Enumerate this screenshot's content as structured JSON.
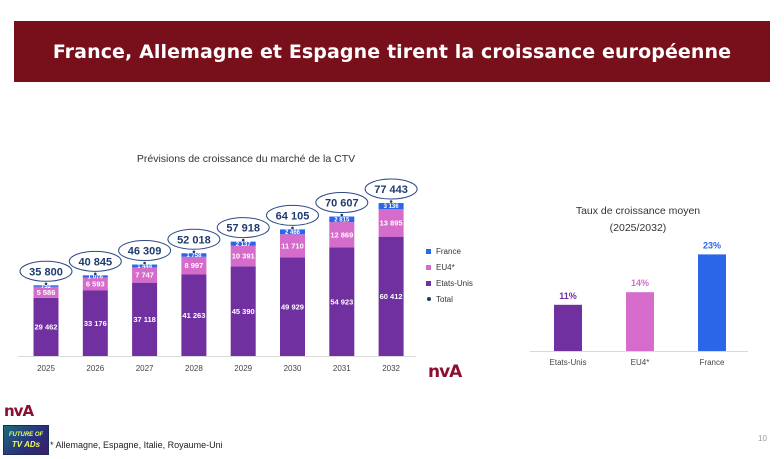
{
  "header": {
    "title": "France, Allemagne et Espagne tirent la croissance européenne"
  },
  "colors": {
    "banner": "#78101b",
    "etats_unis": "#7030a0",
    "eu4": "#d56bcb",
    "france": "#2b66e8",
    "total_ellipse": "#2f4a86",
    "total_text": "#1f3a6e"
  },
  "chart_data": [
    {
      "type": "bar",
      "stacked": true,
      "title": "Prévisions de croissance du marché de la CTV",
      "xlabel": "",
      "ylabel": "",
      "categories": [
        "2025",
        "2026",
        "2027",
        "2028",
        "2029",
        "2030",
        "2031",
        "2032"
      ],
      "series": [
        {
          "name": "Etats-Unis",
          "key": "etats_unis",
          "values": [
            29462,
            33176,
            37118,
            41263,
            45390,
            49929,
            54923,
            60412
          ],
          "labels": [
            "29 462",
            "33 176",
            "37 118",
            "41 263",
            "45 390",
            "49 929",
            "54 923",
            "60 412"
          ]
        },
        {
          "name": "EU4*",
          "key": "eu4",
          "values": [
            5586,
            6593,
            7747,
            8997,
            10391,
            11710,
            12869,
            13895
          ],
          "labels": [
            "5 586",
            "6 593",
            "7 747",
            "8 997",
            "10 391",
            "11 710",
            "12 869",
            "13 895"
          ]
        },
        {
          "name": "France",
          "key": "france",
          "values": [
            752,
            1076,
            1444,
            1758,
            2137,
            2466,
            2815,
            3136
          ],
          "labels": [
            "752",
            "1 076",
            "1 444",
            "1 758",
            "2 137",
            "2 466",
            "2 815",
            "3 136"
          ]
        }
      ],
      "totals": {
        "name": "Total",
        "values": [
          35800,
          40845,
          46309,
          52018,
          57918,
          64105,
          70607,
          77443
        ],
        "labels": [
          "35 800",
          "40 845",
          "46 309",
          "52 018",
          "57 918",
          "64 105",
          "70 607",
          "77 443"
        ]
      },
      "legend": {
        "position": "right",
        "entries": [
          "France",
          "EU4*",
          "Etats-Unis",
          "Total"
        ]
      },
      "ylim": [
        0,
        80000
      ],
      "grid": false
    },
    {
      "type": "bar",
      "title": "Taux de croissance moyen",
      "subtitle": "(2025/2032)",
      "categories": [
        "Etats-Unis",
        "EU4*",
        "France"
      ],
      "values": [
        11,
        14,
        23
      ],
      "unit": "%",
      "labels": [
        "11%",
        "14%",
        "23%"
      ],
      "ylim": [
        0,
        25
      ],
      "grid": false
    }
  ],
  "footer": {
    "footnote": "* Allemagne, Espagne, Italie, Royaume-Uni",
    "page_number": "10",
    "logo_text": "nvA",
    "badge_line1": "FUTURE OF",
    "badge_line2": "TV ADs"
  }
}
